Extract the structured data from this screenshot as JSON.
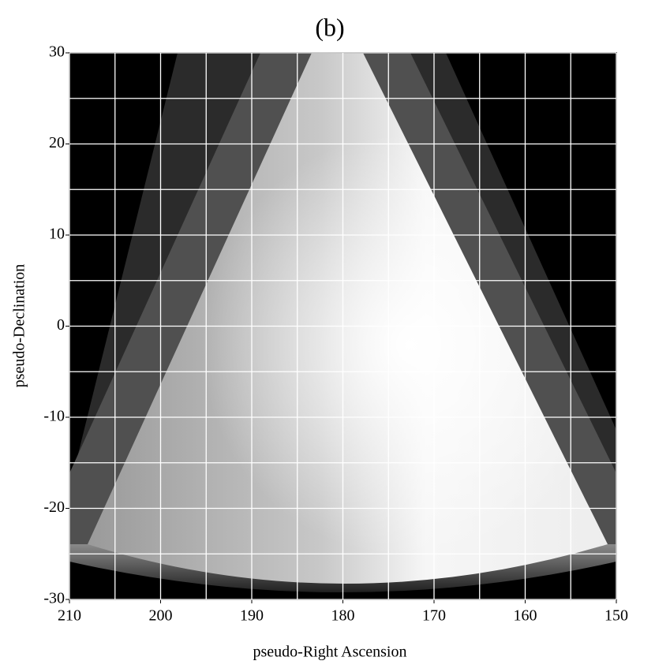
{
  "chart_data": {
    "type": "image",
    "title": "(b)",
    "x_label": "pseudo-Right Ascension",
    "y_label": "pseudo-Declination",
    "xlim": [
      210,
      150
    ],
    "ylim": [
      -30,
      30
    ],
    "xticks": [
      210,
      200,
      190,
      180,
      170,
      160,
      150
    ],
    "yticks": [
      30,
      20,
      10,
      0,
      -10,
      -20,
      -30
    ],
    "x_minor_ticks": [
      205,
      195,
      185,
      175,
      165,
      155
    ],
    "y_minor_ticks": [
      25,
      15,
      5,
      -5,
      -15,
      -25
    ],
    "grid": true,
    "grid_color": "#ffffff"
  }
}
